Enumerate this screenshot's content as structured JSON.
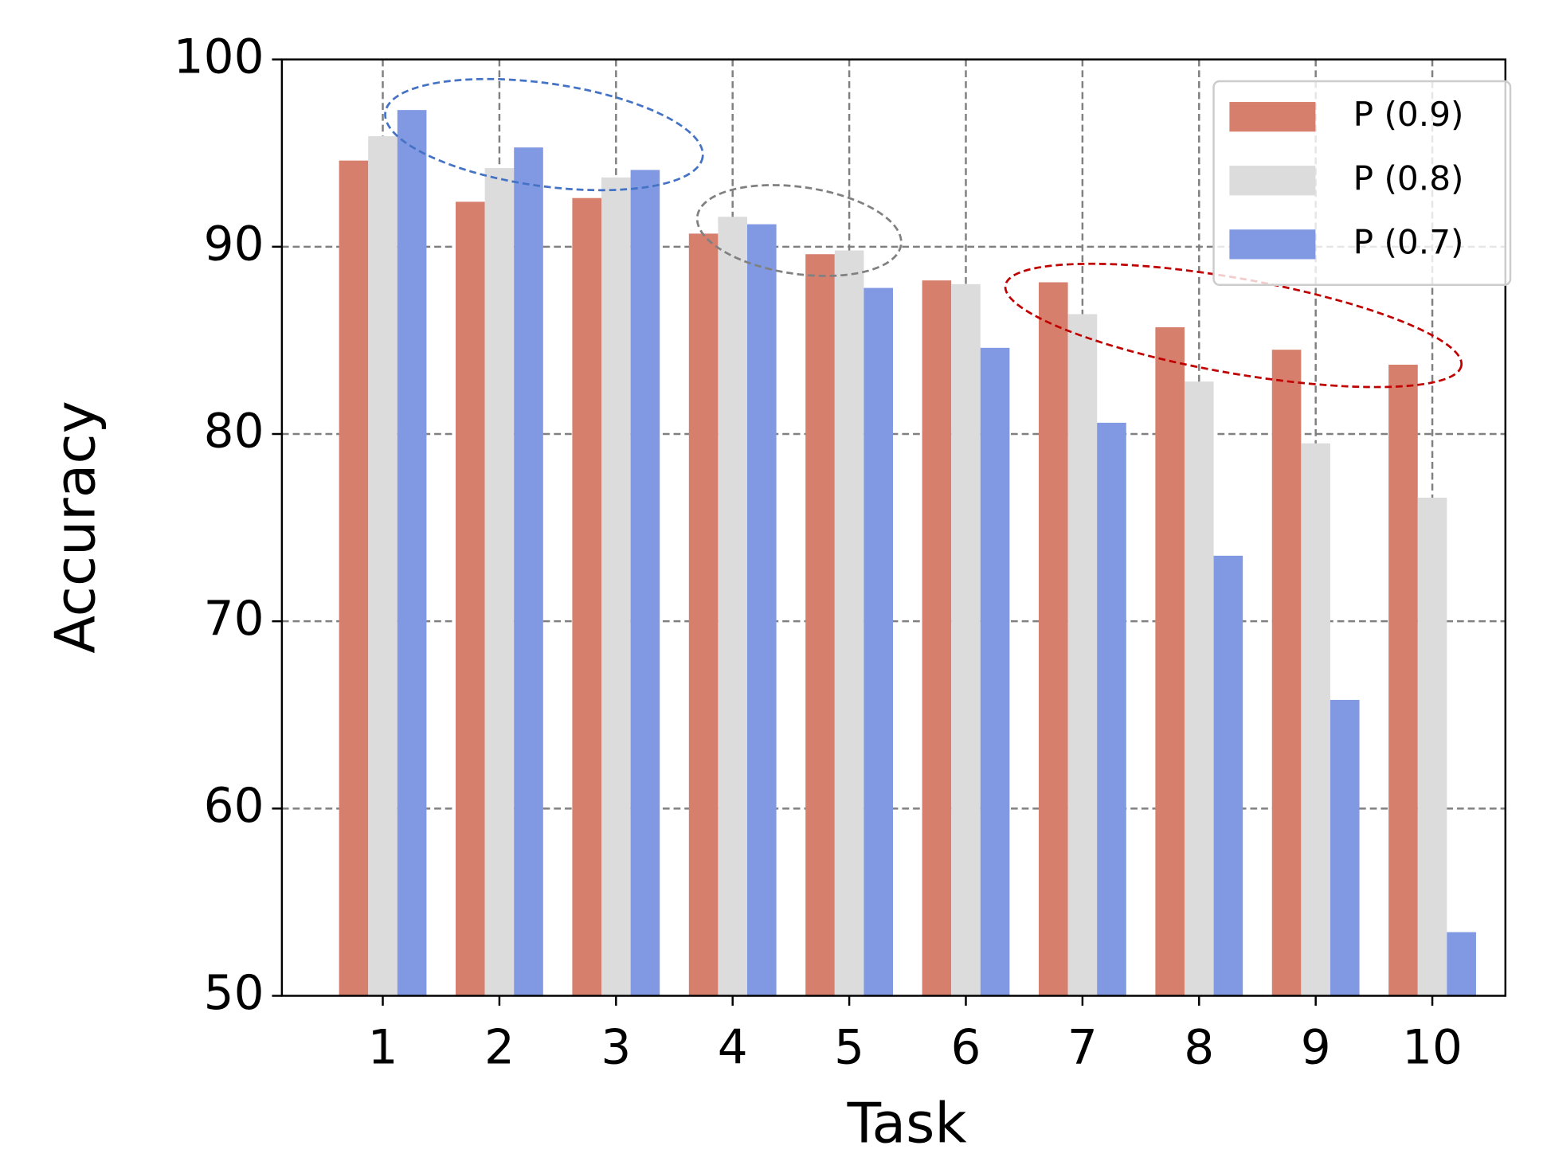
{
  "chart_data": {
    "type": "bar",
    "x_label": "Task",
    "y_label": "Accuracy",
    "categories": [
      "1",
      "2",
      "3",
      "4",
      "5",
      "6",
      "7",
      "8",
      "9",
      "10"
    ],
    "series": [
      {
        "name": "P (0.9)",
        "color": "#d67f6d",
        "values": [
          94.6,
          92.4,
          92.6,
          90.7,
          89.6,
          88.2,
          88.1,
          85.7,
          84.5,
          83.7
        ]
      },
      {
        "name": "P (0.8)",
        "color": "#dcdcdc",
        "values": [
          95.9,
          94.2,
          93.7,
          91.6,
          89.8,
          88.0,
          86.4,
          82.8,
          79.5,
          76.6
        ]
      },
      {
        "name": "P (0.7)",
        "color": "#8199e3",
        "values": [
          97.3,
          95.3,
          94.1,
          91.2,
          87.8,
          84.6,
          80.6,
          73.5,
          65.8,
          53.4
        ]
      }
    ],
    "ylim": [
      50,
      100
    ],
    "yticks": [
      50,
      60,
      70,
      80,
      90,
      100
    ],
    "grid": true,
    "legend": "upper right"
  }
}
